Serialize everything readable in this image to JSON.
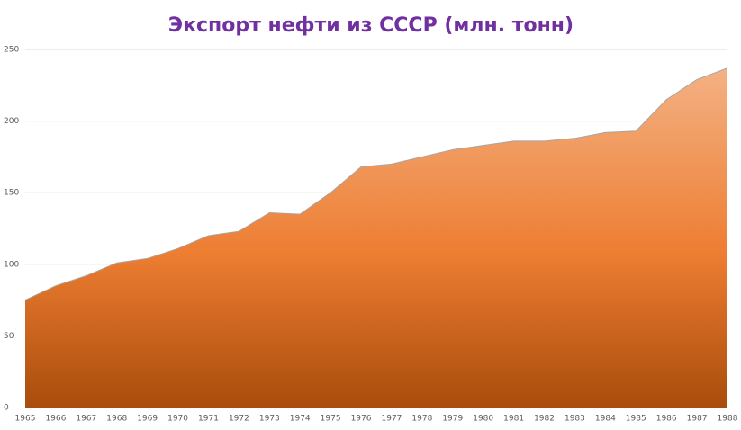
{
  "chart_data": {
    "type": "area",
    "title": "Экспорт нефти из СССР (млн. тонн)",
    "categories": [
      "1965",
      "1966",
      "1967",
      "1968",
      "1969",
      "1970",
      "1971",
      "1972",
      "1973",
      "1974",
      "1975",
      "1976",
      "1977",
      "1978",
      "1979",
      "1980",
      "1981",
      "1982",
      "1983",
      "1984",
      "1985",
      "1986",
      "1987",
      "1988"
    ],
    "values": [
      75,
      85,
      92,
      101,
      104,
      111,
      120,
      123,
      136,
      135,
      150,
      168,
      170,
      175,
      180,
      183,
      186,
      186,
      188,
      192,
      193,
      215,
      229,
      237
    ],
    "color": "#ed7d31",
    "ylim": [
      0,
      250
    ],
    "yticks": [
      0,
      50,
      100,
      150,
      200,
      250
    ],
    "grid": true
  }
}
